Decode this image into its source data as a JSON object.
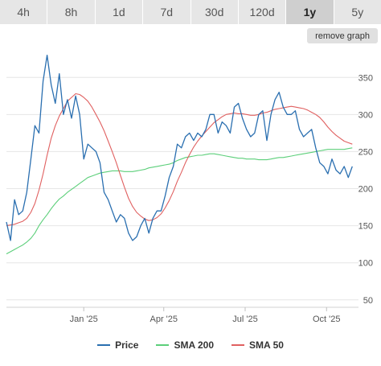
{
  "range_tabs": [
    "4h",
    "8h",
    "1d",
    "7d",
    "30d",
    "120d",
    "1y",
    "5y"
  ],
  "active_tab_index": 6,
  "remove_graph_label": "remove graph",
  "colors": {
    "price": "#2a6fb0",
    "sma200": "#5ccf7a",
    "sma50": "#e06060",
    "grid": "#e6e6e6"
  },
  "chart_data": {
    "type": "line",
    "x_tick_labels": [
      "Jan '25",
      "Apr '25",
      "Jul '25",
      "Oct '25"
    ],
    "x_tick_positions": [
      1.55,
      4.5,
      7.5,
      10.5
    ],
    "xlim": [
      -1.3,
      11.5
    ],
    "ylim": [
      40,
      385
    ],
    "y_ticks": [
      50,
      100,
      150,
      200,
      250,
      300,
      350
    ],
    "grid": true,
    "legend_position": "bottom",
    "x": [
      -1.3,
      -1.15,
      -1.0,
      -0.85,
      -0.7,
      -0.55,
      -0.4,
      -0.25,
      -0.1,
      0.05,
      0.2,
      0.35,
      0.5,
      0.65,
      0.8,
      0.95,
      1.1,
      1.25,
      1.4,
      1.55,
      1.7,
      1.85,
      2.0,
      2.15,
      2.3,
      2.45,
      2.6,
      2.75,
      2.9,
      3.05,
      3.2,
      3.35,
      3.5,
      3.65,
      3.8,
      3.95,
      4.1,
      4.25,
      4.4,
      4.55,
      4.7,
      4.85,
      5.0,
      5.15,
      5.3,
      5.45,
      5.6,
      5.75,
      5.9,
      6.05,
      6.2,
      6.35,
      6.5,
      6.65,
      6.8,
      6.95,
      7.1,
      7.25,
      7.4,
      7.55,
      7.7,
      7.85,
      8.0,
      8.15,
      8.3,
      8.45,
      8.6,
      8.75,
      8.9,
      9.05,
      9.2,
      9.35,
      9.5,
      9.65,
      9.8,
      9.95,
      10.1,
      10.25,
      10.4,
      10.55,
      10.7,
      10.85,
      11.0,
      11.15,
      11.3,
      11.45
    ],
    "series": [
      {
        "name": "Price",
        "values": [
          155,
          130,
          185,
          165,
          170,
          195,
          240,
          285,
          275,
          345,
          380,
          340,
          315,
          355,
          300,
          320,
          295,
          325,
          300,
          240,
          260,
          255,
          250,
          235,
          195,
          185,
          170,
          155,
          165,
          160,
          140,
          130,
          135,
          150,
          160,
          140,
          160,
          170,
          170,
          190,
          215,
          230,
          260,
          255,
          270,
          275,
          265,
          275,
          270,
          280,
          300,
          300,
          275,
          290,
          285,
          275,
          310,
          315,
          295,
          280,
          270,
          275,
          300,
          305,
          265,
          300,
          320,
          330,
          310,
          300,
          300,
          305,
          280,
          270,
          275,
          280,
          255,
          235,
          230,
          220,
          240,
          225,
          220,
          230,
          215,
          230
        ]
      },
      {
        "name": "SMA 200",
        "values": [
          112,
          115,
          118,
          121,
          124,
          128,
          133,
          140,
          150,
          158,
          165,
          173,
          180,
          186,
          190,
          195,
          199,
          203,
          207,
          211,
          215,
          217,
          219,
          221,
          222,
          223,
          224,
          224,
          224,
          223,
          223,
          223,
          224,
          225,
          226,
          228,
          229,
          230,
          231,
          232,
          233,
          235,
          238,
          240,
          242,
          243,
          244,
          245,
          245,
          246,
          247,
          247,
          246,
          245,
          244,
          243,
          242,
          241,
          241,
          240,
          240,
          240,
          239,
          239,
          239,
          240,
          241,
          242,
          242,
          243,
          244,
          245,
          246,
          247,
          248,
          249,
          250,
          251,
          252,
          253,
          253,
          253,
          253,
          253,
          254,
          255
        ]
      },
      {
        "name": "SMA 50",
        "values": [
          150,
          151,
          152,
          154,
          156,
          160,
          168,
          180,
          198,
          220,
          245,
          268,
          285,
          298,
          308,
          318,
          323,
          328,
          327,
          323,
          318,
          310,
          300,
          290,
          278,
          264,
          250,
          235,
          218,
          202,
          187,
          176,
          168,
          163,
          159,
          157,
          158,
          161,
          166,
          174,
          184,
          196,
          210,
          222,
          235,
          246,
          256,
          264,
          271,
          277,
          283,
          289,
          293,
          297,
          300,
          301,
          302,
          301,
          301,
          300,
          299,
          299,
          300,
          302,
          303,
          305,
          307,
          308,
          309,
          310,
          311,
          310,
          309,
          308,
          306,
          303,
          300,
          296,
          290,
          283,
          277,
          272,
          268,
          264,
          262,
          260
        ]
      }
    ]
  }
}
